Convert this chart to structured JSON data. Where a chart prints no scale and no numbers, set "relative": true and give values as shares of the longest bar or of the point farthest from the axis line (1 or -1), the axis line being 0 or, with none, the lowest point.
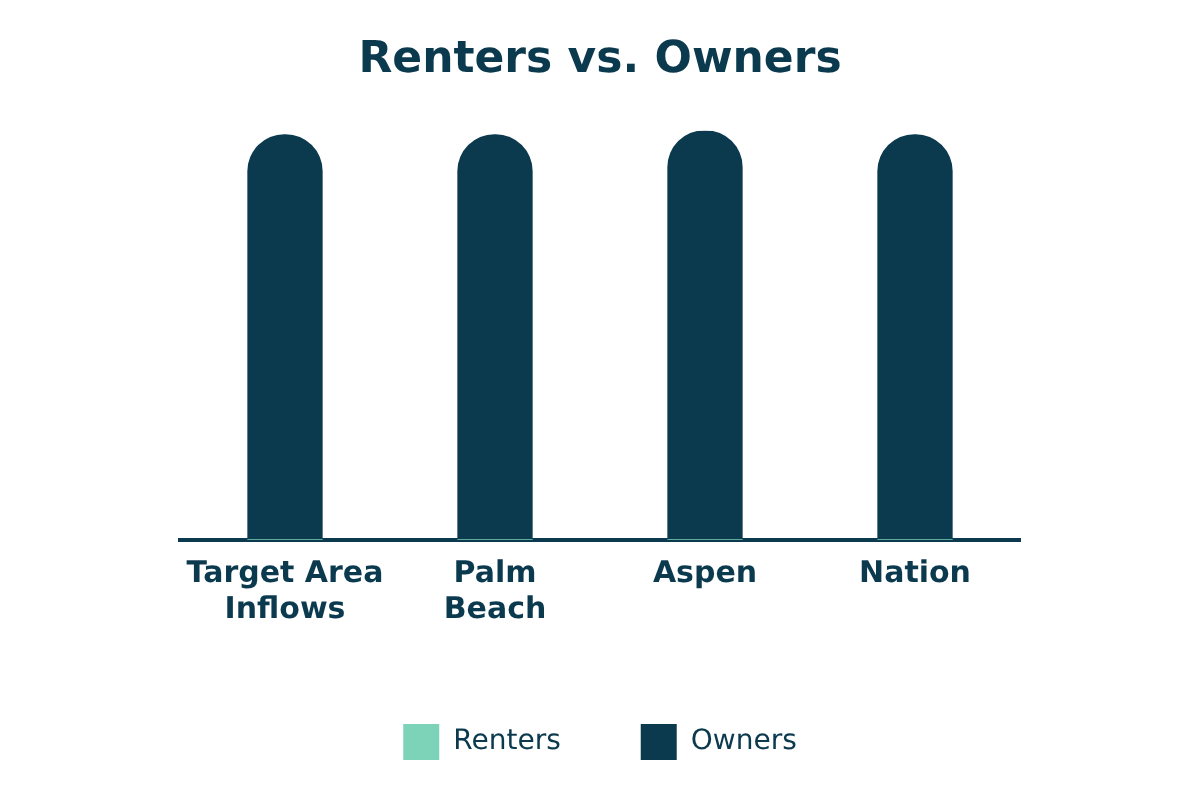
{
  "chart_data": {
    "type": "bar",
    "title": "Renters vs. Owners",
    "categories": [
      "Target Area Inflows",
      "Palm Beach",
      "Aspen",
      "Nation"
    ],
    "stacked": true,
    "relative": true,
    "legend": "bottom",
    "grid": false,
    "series": [
      {
        "name": "Renters",
        "color": "#7dd3b8",
        "values": [
          0,
          0,
          0,
          0
        ]
      },
      {
        "name": "Owners",
        "color": "#0b3a4f",
        "values": [
          0.99,
          0.99,
          1,
          0.99
        ]
      }
    ]
  }
}
